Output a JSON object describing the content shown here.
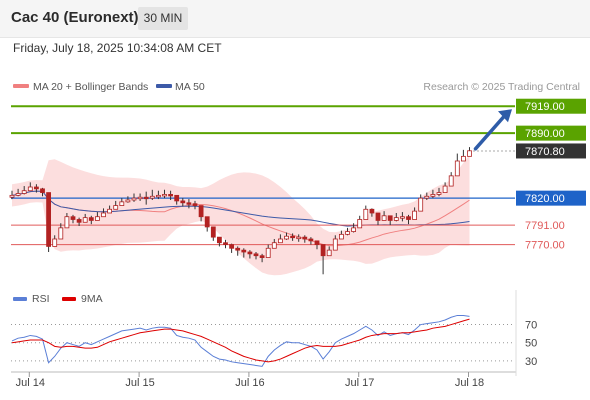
{
  "header": {
    "title": "Cac 40 (Euronext)",
    "timeframe": "30 MIN",
    "timestamp": "Friday, July 18, 2025 10:34:08 AM CET"
  },
  "colors": {
    "ma20": "#f08080",
    "bollinger_fill": "#fbd3d3",
    "ma50": "#3d5aa8",
    "candle": "#b22222",
    "resistance": "#5aa300",
    "pivot": "#1e63c8",
    "support": "#e05a5a",
    "last": "#333333",
    "rsi": "#5b7fd6",
    "rsi_ma": "#dd0000",
    "arrow": "#2e5ca8"
  },
  "chart_data": [
    {
      "type": "candlestick",
      "legend": [
        {
          "name": "MA 20 + Bollinger Bands",
          "color": "#f08080"
        },
        {
          "name": "MA 50",
          "color": "#3d5aa8"
        }
      ],
      "legend_position": "top-left",
      "annotation": "Research © 2025 Trading Central",
      "x_ticks": [
        "Jul 14",
        "Jul 15",
        "Jul 16",
        "Jul 17",
        "Jul 18"
      ],
      "x_tick_index": [
        3,
        21,
        39,
        57,
        75
      ],
      "ylim": [
        7734,
        7930
      ],
      "grid": false,
      "levels": [
        {
          "label": "7919.00",
          "value": 7919,
          "kind": "resistance",
          "style": "solid"
        },
        {
          "label": "7890.00",
          "value": 7890,
          "kind": "resistance",
          "style": "solid"
        },
        {
          "label": "7870.80",
          "value": 7870.8,
          "kind": "last",
          "style": "dotted"
        },
        {
          "label": "7820.00",
          "value": 7820,
          "kind": "pivot",
          "style": "solid"
        },
        {
          "label": "7791.00",
          "value": 7791,
          "kind": "support",
          "style": "solid"
        },
        {
          "label": "7770.00",
          "value": 7770,
          "kind": "support",
          "style": "solid"
        }
      ],
      "close": [
        7823,
        7825,
        7828,
        7832,
        7830,
        7826,
        7768,
        7776,
        7788,
        7800,
        7797,
        7794,
        7799,
        7796,
        7800,
        7804,
        7808,
        7812,
        7816,
        7818,
        7820,
        7821,
        7820,
        7822,
        7823,
        7824,
        7823,
        7817,
        7815,
        7814,
        7812,
        7800,
        7789,
        7778,
        7772,
        7770,
        7766,
        7764,
        7762,
        7760,
        7758,
        7756,
        7766,
        7772,
        7776,
        7779,
        7778,
        7778,
        7776,
        7774,
        7770,
        7758,
        7764,
        7776,
        7781,
        7784,
        7788,
        7797,
        7808,
        7804,
        7796,
        7801,
        7796,
        7799,
        7800,
        7797,
        7806,
        7820,
        7822,
        7824,
        7826,
        7833,
        7844,
        7860,
        7865,
        7871
      ],
      "high": [
        7828,
        7830,
        7833,
        7837,
        7835,
        7831,
        7772,
        7780,
        7793,
        7804,
        7802,
        7799,
        7803,
        7801,
        7805,
        7809,
        7812,
        7817,
        7820,
        7822,
        7825,
        7825,
        7827,
        7829,
        7828,
        7829,
        7828,
        7822,
        7820,
        7819,
        7817,
        7806,
        7794,
        7782,
        7777,
        7775,
        7771,
        7768,
        7766,
        7764,
        7762,
        7760,
        7770,
        7776,
        7781,
        7783,
        7782,
        7781,
        7780,
        7778,
        7774,
        7762,
        7768,
        7780,
        7785,
        7788,
        7793,
        7801,
        7812,
        7809,
        7800,
        7806,
        7800,
        7804,
        7805,
        7802,
        7810,
        7824,
        7826,
        7829,
        7831,
        7837,
        7848,
        7868,
        7872,
        7875
      ],
      "low": [
        7819,
        7822,
        7824,
        7828,
        7826,
        7822,
        7762,
        7772,
        7784,
        7796,
        7793,
        7790,
        7794,
        7792,
        7796,
        7800,
        7804,
        7808,
        7812,
        7815,
        7816,
        7817,
        7813,
        7818,
        7819,
        7820,
        7818,
        7813,
        7811,
        7809,
        7808,
        7795,
        7784,
        7774,
        7768,
        7766,
        7761,
        7758,
        7756,
        7755,
        7754,
        7751,
        7761,
        7768,
        7772,
        7775,
        7774,
        7773,
        7772,
        7770,
        7765,
        7738,
        7759,
        7771,
        7777,
        7780,
        7783,
        7792,
        7803,
        7800,
        7791,
        7797,
        7791,
        7795,
        7795,
        7792,
        7802,
        7816,
        7818,
        7820,
        7822,
        7829,
        7840,
        7854,
        7860,
        7866
      ]
    },
    {
      "type": "line",
      "series": [
        {
          "name": "RSI",
          "color": "#5b7fd6"
        },
        {
          "name": "9MA",
          "color": "#dd0000"
        }
      ],
      "legend_position": "top-left",
      "y_ticks": [
        70,
        50,
        30
      ],
      "ylim": [
        20,
        86
      ],
      "rsi": [
        52,
        55,
        56,
        58,
        57,
        54,
        28,
        35,
        44,
        50,
        48,
        46,
        50,
        48,
        51,
        54,
        57,
        60,
        63,
        64,
        65,
        66,
        64,
        66,
        67,
        67,
        66,
        58,
        56,
        55,
        53,
        45,
        40,
        35,
        32,
        31,
        29,
        28,
        27,
        26,
        25,
        24,
        35,
        42,
        47,
        51,
        50,
        50,
        48,
        46,
        42,
        32,
        40,
        50,
        54,
        57,
        60,
        64,
        68,
        64,
        58,
        62,
        58,
        60,
        61,
        59,
        64,
        70,
        71,
        72,
        73,
        75,
        78,
        80,
        80,
        79
      ],
      "rsi_ma": [
        50,
        51,
        52,
        53,
        53,
        53,
        50,
        46,
        45,
        46,
        46,
        45,
        44,
        44,
        45,
        48,
        51,
        53,
        55,
        57,
        59,
        61,
        62,
        63,
        64,
        65,
        65,
        64,
        63,
        61,
        59,
        57,
        54,
        51,
        48,
        45,
        41,
        38,
        35,
        33,
        31,
        30,
        29,
        30,
        32,
        35,
        38,
        41,
        44,
        46,
        47,
        46,
        46,
        46,
        47,
        49,
        51,
        53,
        56,
        58,
        59,
        60,
        60,
        60,
        61,
        61,
        62,
        63,
        64,
        66,
        67,
        68,
        70,
        72,
        74,
        76
      ]
    }
  ]
}
